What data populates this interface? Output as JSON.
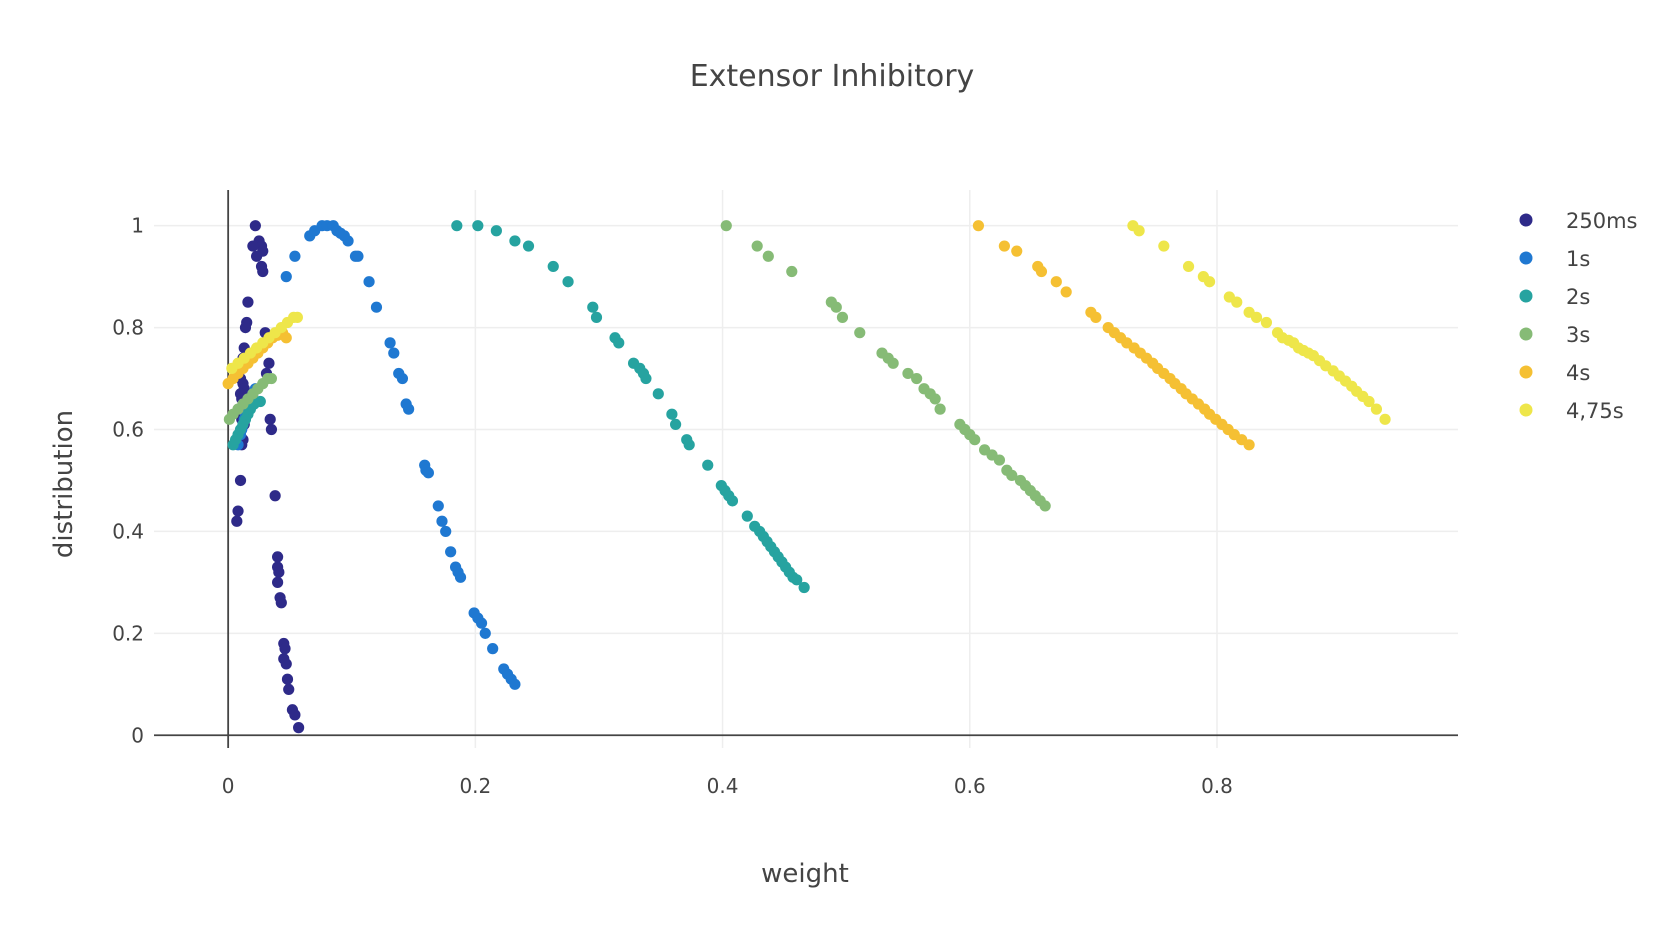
{
  "chart_data": {
    "type": "scatter",
    "title": "Extensor Inhibitory",
    "xlabel": "weight",
    "ylabel": "distribution",
    "xlim": [
      -0.06,
      0.995
    ],
    "ylim": [
      -0.025,
      1.07
    ],
    "xticks": [
      0,
      0.2,
      0.4,
      0.6,
      0.8
    ],
    "xtick_labels": [
      "0",
      "0.2",
      "0.4",
      "0.6",
      "0.8"
    ],
    "yticks": [
      0,
      0.2,
      0.4,
      0.6,
      0.8,
      1
    ],
    "ytick_labels": [
      "0",
      "0.2",
      "0.4",
      "0.6",
      "0.8",
      "1"
    ],
    "grid": true,
    "legend_position": "right",
    "series": [
      {
        "name": "250ms",
        "color": "#2e2a89",
        "points": [
          [
            0.022,
            1.0
          ],
          [
            0.025,
            0.97
          ],
          [
            0.027,
            0.96
          ],
          [
            0.028,
            0.95
          ],
          [
            0.02,
            0.96
          ],
          [
            0.023,
            0.94
          ],
          [
            0.027,
            0.92
          ],
          [
            0.028,
            0.91
          ],
          [
            0.016,
            0.85
          ],
          [
            0.015,
            0.81
          ],
          [
            0.014,
            0.8
          ],
          [
            0.03,
            0.79
          ],
          [
            0.032,
            0.78
          ],
          [
            0.013,
            0.76
          ],
          [
            0.012,
            0.74
          ],
          [
            0.033,
            0.73
          ],
          [
            0.011,
            0.72
          ],
          [
            0.031,
            0.71
          ],
          [
            0.01,
            0.7
          ],
          [
            0.012,
            0.69
          ],
          [
            0.013,
            0.68
          ],
          [
            0.01,
            0.67
          ],
          [
            0.011,
            0.66
          ],
          [
            0.012,
            0.65
          ],
          [
            0.012,
            0.64
          ],
          [
            0.01,
            0.63
          ],
          [
            0.011,
            0.62
          ],
          [
            0.013,
            0.61
          ],
          [
            0.034,
            0.62
          ],
          [
            0.035,
            0.6
          ],
          [
            0.012,
            0.58
          ],
          [
            0.011,
            0.57
          ],
          [
            0.01,
            0.5
          ],
          [
            0.008,
            0.44
          ],
          [
            0.007,
            0.42
          ],
          [
            0.038,
            0.47
          ],
          [
            0.04,
            0.35
          ],
          [
            0.04,
            0.33
          ],
          [
            0.041,
            0.32
          ],
          [
            0.04,
            0.3
          ],
          [
            0.042,
            0.27
          ],
          [
            0.043,
            0.26
          ],
          [
            0.045,
            0.18
          ],
          [
            0.046,
            0.17
          ],
          [
            0.045,
            0.15
          ],
          [
            0.047,
            0.14
          ],
          [
            0.048,
            0.11
          ],
          [
            0.049,
            0.09
          ],
          [
            0.052,
            0.05
          ],
          [
            0.054,
            0.04
          ],
          [
            0.057,
            0.015
          ]
        ]
      },
      {
        "name": "1s",
        "color": "#1f78d1",
        "points": [
          [
            0.008,
            0.57
          ],
          [
            0.01,
            0.59
          ],
          [
            0.011,
            0.6
          ],
          [
            0.012,
            0.61
          ],
          [
            0.013,
            0.62
          ],
          [
            0.014,
            0.63
          ],
          [
            0.015,
            0.64
          ],
          [
            0.016,
            0.65
          ],
          [
            0.018,
            0.66
          ],
          [
            0.02,
            0.67
          ],
          [
            0.022,
            0.68
          ],
          [
            0.047,
            0.9
          ],
          [
            0.054,
            0.94
          ],
          [
            0.066,
            0.98
          ],
          [
            0.07,
            0.99
          ],
          [
            0.076,
            1.0
          ],
          [
            0.08,
            1.0
          ],
          [
            0.085,
            1.0
          ],
          [
            0.088,
            0.99
          ],
          [
            0.091,
            0.985
          ],
          [
            0.094,
            0.98
          ],
          [
            0.097,
            0.97
          ],
          [
            0.103,
            0.94
          ],
          [
            0.105,
            0.94
          ],
          [
            0.114,
            0.89
          ],
          [
            0.12,
            0.84
          ],
          [
            0.131,
            0.77
          ],
          [
            0.134,
            0.75
          ],
          [
            0.138,
            0.71
          ],
          [
            0.141,
            0.7
          ],
          [
            0.144,
            0.65
          ],
          [
            0.146,
            0.64
          ],
          [
            0.159,
            0.53
          ],
          [
            0.16,
            0.52
          ],
          [
            0.162,
            0.515
          ],
          [
            0.17,
            0.45
          ],
          [
            0.173,
            0.42
          ],
          [
            0.176,
            0.4
          ],
          [
            0.18,
            0.36
          ],
          [
            0.184,
            0.33
          ],
          [
            0.186,
            0.32
          ],
          [
            0.188,
            0.31
          ],
          [
            0.199,
            0.24
          ],
          [
            0.202,
            0.23
          ],
          [
            0.205,
            0.22
          ],
          [
            0.208,
            0.2
          ],
          [
            0.214,
            0.17
          ],
          [
            0.223,
            0.13
          ],
          [
            0.226,
            0.12
          ],
          [
            0.229,
            0.11
          ],
          [
            0.232,
            0.1
          ]
        ]
      },
      {
        "name": "2s",
        "color": "#26a3a0",
        "points": [
          [
            0.004,
            0.57
          ],
          [
            0.006,
            0.58
          ],
          [
            0.008,
            0.59
          ],
          [
            0.01,
            0.6
          ],
          [
            0.012,
            0.61
          ],
          [
            0.014,
            0.62
          ],
          [
            0.016,
            0.63
          ],
          [
            0.018,
            0.64
          ],
          [
            0.021,
            0.65
          ],
          [
            0.026,
            0.655
          ],
          [
            0.185,
            1.0
          ],
          [
            0.202,
            1.0
          ],
          [
            0.217,
            0.99
          ],
          [
            0.232,
            0.97
          ],
          [
            0.243,
            0.96
          ],
          [
            0.263,
            0.92
          ],
          [
            0.275,
            0.89
          ],
          [
            0.295,
            0.84
          ],
          [
            0.298,
            0.82
          ],
          [
            0.313,
            0.78
          ],
          [
            0.316,
            0.77
          ],
          [
            0.328,
            0.73
          ],
          [
            0.333,
            0.72
          ],
          [
            0.336,
            0.71
          ],
          [
            0.338,
            0.7
          ],
          [
            0.348,
            0.67
          ],
          [
            0.359,
            0.63
          ],
          [
            0.362,
            0.61
          ],
          [
            0.371,
            0.58
          ],
          [
            0.373,
            0.57
          ],
          [
            0.388,
            0.53
          ],
          [
            0.399,
            0.49
          ],
          [
            0.402,
            0.48
          ],
          [
            0.405,
            0.47
          ],
          [
            0.408,
            0.46
          ],
          [
            0.42,
            0.43
          ],
          [
            0.426,
            0.41
          ],
          [
            0.43,
            0.4
          ],
          [
            0.433,
            0.39
          ],
          [
            0.436,
            0.38
          ],
          [
            0.439,
            0.37
          ],
          [
            0.442,
            0.36
          ],
          [
            0.445,
            0.35
          ],
          [
            0.448,
            0.34
          ],
          [
            0.451,
            0.33
          ],
          [
            0.454,
            0.32
          ],
          [
            0.457,
            0.31
          ],
          [
            0.46,
            0.305
          ],
          [
            0.466,
            0.29
          ]
        ]
      },
      {
        "name": "3s",
        "color": "#86bb76",
        "points": [
          [
            0.001,
            0.62
          ],
          [
            0.004,
            0.63
          ],
          [
            0.008,
            0.64
          ],
          [
            0.012,
            0.65
          ],
          [
            0.016,
            0.66
          ],
          [
            0.02,
            0.67
          ],
          [
            0.024,
            0.68
          ],
          [
            0.028,
            0.69
          ],
          [
            0.032,
            0.7
          ],
          [
            0.035,
            0.7
          ],
          [
            0.403,
            1.0
          ],
          [
            0.428,
            0.96
          ],
          [
            0.437,
            0.94
          ],
          [
            0.456,
            0.91
          ],
          [
            0.488,
            0.85
          ],
          [
            0.492,
            0.84
          ],
          [
            0.497,
            0.82
          ],
          [
            0.511,
            0.79
          ],
          [
            0.529,
            0.75
          ],
          [
            0.534,
            0.74
          ],
          [
            0.538,
            0.73
          ],
          [
            0.55,
            0.71
          ],
          [
            0.557,
            0.7
          ],
          [
            0.563,
            0.68
          ],
          [
            0.568,
            0.67
          ],
          [
            0.572,
            0.66
          ],
          [
            0.576,
            0.64
          ],
          [
            0.592,
            0.61
          ],
          [
            0.596,
            0.6
          ],
          [
            0.6,
            0.59
          ],
          [
            0.604,
            0.58
          ],
          [
            0.612,
            0.56
          ],
          [
            0.618,
            0.55
          ],
          [
            0.624,
            0.54
          ],
          [
            0.63,
            0.52
          ],
          [
            0.634,
            0.51
          ],
          [
            0.641,
            0.5
          ],
          [
            0.645,
            0.49
          ],
          [
            0.649,
            0.48
          ],
          [
            0.653,
            0.47
          ],
          [
            0.657,
            0.46
          ],
          [
            0.661,
            0.45
          ]
        ]
      },
      {
        "name": "4s",
        "color": "#f5c033",
        "points": [
          [
            0.0,
            0.69
          ],
          [
            0.004,
            0.7
          ],
          [
            0.008,
            0.71
          ],
          [
            0.012,
            0.72
          ],
          [
            0.016,
            0.73
          ],
          [
            0.02,
            0.74
          ],
          [
            0.024,
            0.75
          ],
          [
            0.028,
            0.76
          ],
          [
            0.032,
            0.77
          ],
          [
            0.036,
            0.78
          ],
          [
            0.04,
            0.785
          ],
          [
            0.044,
            0.79
          ],
          [
            0.047,
            0.78
          ],
          [
            0.607,
            1.0
          ],
          [
            0.628,
            0.96
          ],
          [
            0.638,
            0.95
          ],
          [
            0.655,
            0.92
          ],
          [
            0.658,
            0.91
          ],
          [
            0.67,
            0.89
          ],
          [
            0.678,
            0.87
          ],
          [
            0.698,
            0.83
          ],
          [
            0.702,
            0.82
          ],
          [
            0.712,
            0.8
          ],
          [
            0.717,
            0.79
          ],
          [
            0.722,
            0.78
          ],
          [
            0.727,
            0.77
          ],
          [
            0.733,
            0.76
          ],
          [
            0.738,
            0.75
          ],
          [
            0.743,
            0.74
          ],
          [
            0.748,
            0.73
          ],
          [
            0.752,
            0.72
          ],
          [
            0.757,
            0.71
          ],
          [
            0.762,
            0.7
          ],
          [
            0.766,
            0.69
          ],
          [
            0.771,
            0.68
          ],
          [
            0.775,
            0.67
          ],
          [
            0.78,
            0.66
          ],
          [
            0.785,
            0.65
          ],
          [
            0.79,
            0.64
          ],
          [
            0.794,
            0.63
          ],
          [
            0.799,
            0.62
          ],
          [
            0.804,
            0.61
          ],
          [
            0.809,
            0.6
          ],
          [
            0.814,
            0.59
          ],
          [
            0.82,
            0.58
          ],
          [
            0.826,
            0.57
          ]
        ]
      },
      {
        "name": "4,75s",
        "color": "#eee64a",
        "points": [
          [
            0.003,
            0.72
          ],
          [
            0.008,
            0.73
          ],
          [
            0.013,
            0.74
          ],
          [
            0.018,
            0.75
          ],
          [
            0.023,
            0.76
          ],
          [
            0.028,
            0.77
          ],
          [
            0.033,
            0.78
          ],
          [
            0.038,
            0.79
          ],
          [
            0.043,
            0.8
          ],
          [
            0.048,
            0.81
          ],
          [
            0.053,
            0.82
          ],
          [
            0.056,
            0.82
          ],
          [
            0.732,
            1.0
          ],
          [
            0.737,
            0.99
          ],
          [
            0.757,
            0.96
          ],
          [
            0.777,
            0.92
          ],
          [
            0.789,
            0.9
          ],
          [
            0.794,
            0.89
          ],
          [
            0.81,
            0.86
          ],
          [
            0.816,
            0.85
          ],
          [
            0.826,
            0.83
          ],
          [
            0.832,
            0.82
          ],
          [
            0.84,
            0.81
          ],
          [
            0.849,
            0.79
          ],
          [
            0.853,
            0.78
          ],
          [
            0.858,
            0.775
          ],
          [
            0.862,
            0.77
          ],
          [
            0.866,
            0.76
          ],
          [
            0.87,
            0.755
          ],
          [
            0.874,
            0.75
          ],
          [
            0.878,
            0.745
          ],
          [
            0.883,
            0.735
          ],
          [
            0.888,
            0.725
          ],
          [
            0.894,
            0.715
          ],
          [
            0.899,
            0.705
          ],
          [
            0.904,
            0.695
          ],
          [
            0.909,
            0.685
          ],
          [
            0.913,
            0.675
          ],
          [
            0.918,
            0.665
          ],
          [
            0.923,
            0.655
          ],
          [
            0.929,
            0.64
          ],
          [
            0.936,
            0.62
          ]
        ]
      }
    ]
  }
}
